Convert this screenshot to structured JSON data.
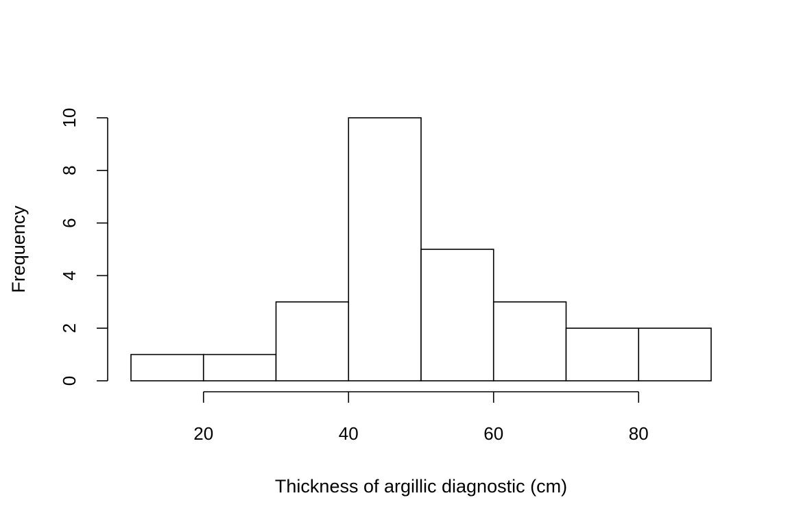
{
  "chart_data": {
    "type": "bar",
    "subtype": "histogram",
    "bins": [
      {
        "start": 10,
        "end": 20,
        "count": 1
      },
      {
        "start": 20,
        "end": 30,
        "count": 1
      },
      {
        "start": 30,
        "end": 40,
        "count": 3
      },
      {
        "start": 40,
        "end": 50,
        "count": 10
      },
      {
        "start": 50,
        "end": 60,
        "count": 5
      },
      {
        "start": 60,
        "end": 70,
        "count": 3
      },
      {
        "start": 70,
        "end": 80,
        "count": 2
      },
      {
        "start": 80,
        "end": 90,
        "count": 2
      }
    ],
    "title": "",
    "xlabel": "Thickness of argillic diagnostic (cm)",
    "ylabel": "Frequency",
    "x_ticks": [
      20,
      40,
      60,
      80
    ],
    "y_ticks": [
      0,
      2,
      4,
      6,
      8,
      10
    ],
    "xlim": [
      10,
      90
    ],
    "ylim": [
      0,
      10
    ],
    "grid": false,
    "bar_fill": "#ffffff",
    "bar_stroke": "#000000"
  }
}
